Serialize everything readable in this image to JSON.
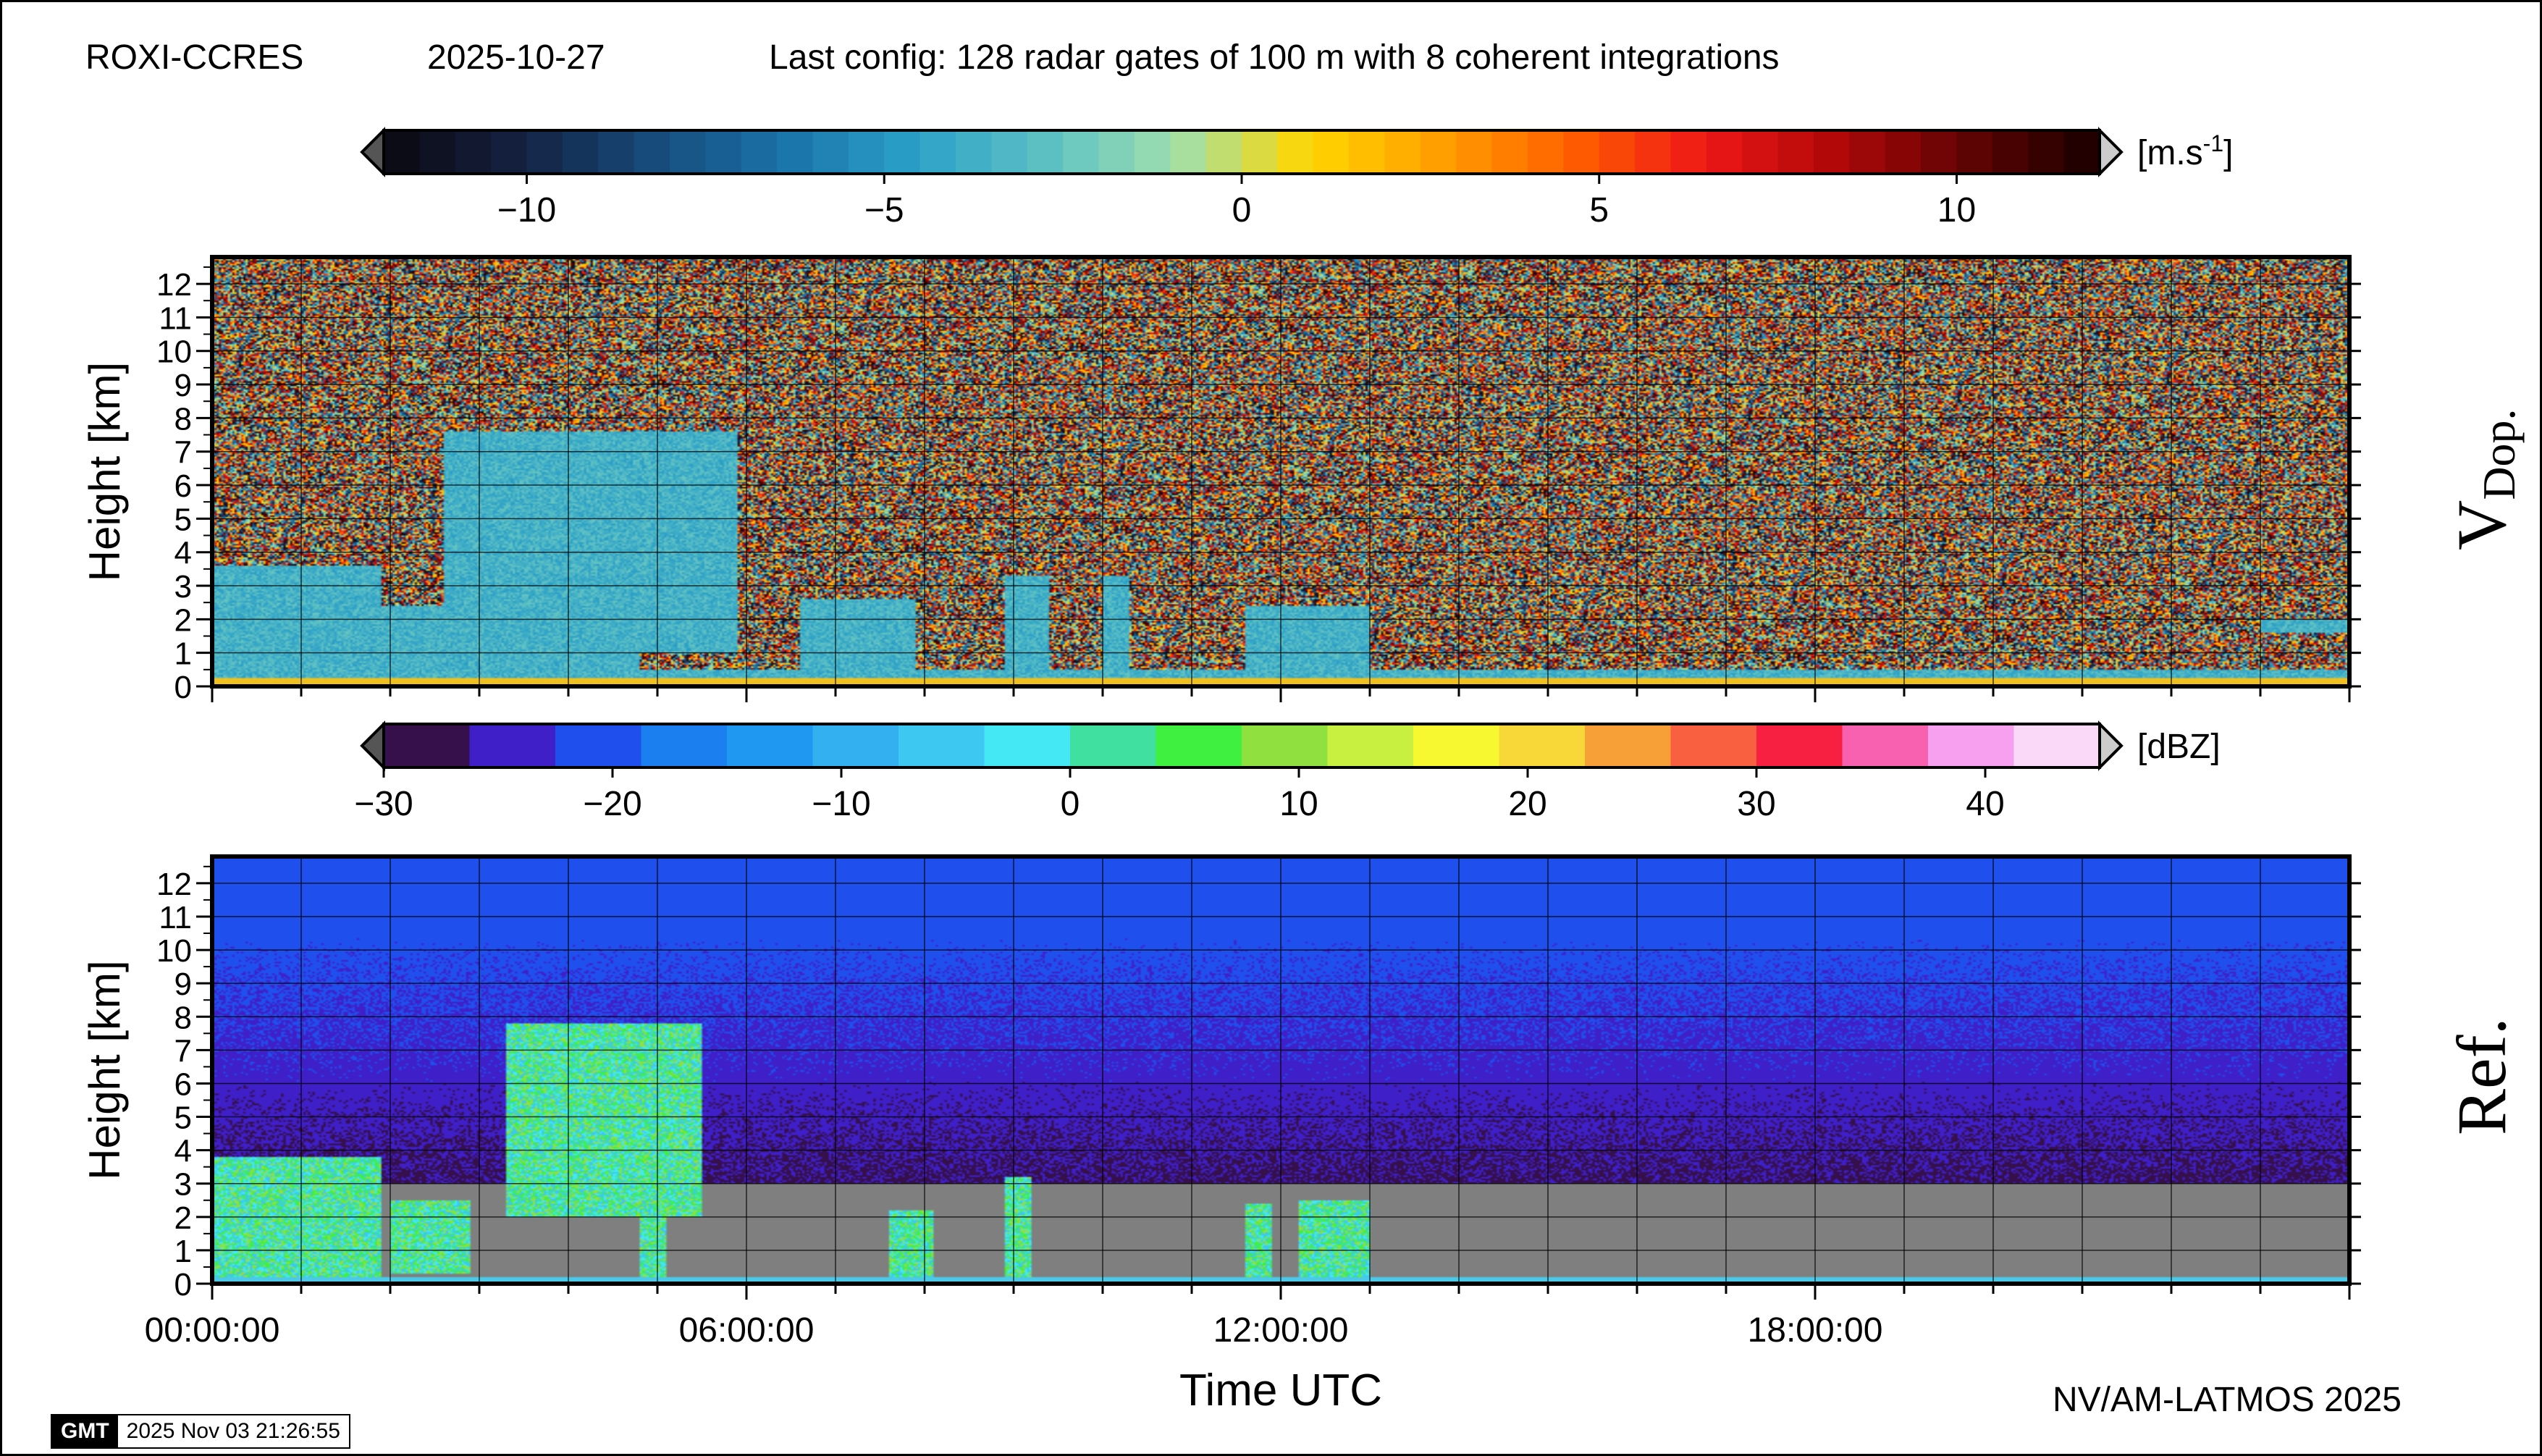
{
  "header": {
    "site": "ROXI-CCRES",
    "date": "2025-10-27",
    "config": "Last config: 128 radar gates of 100 m with 8 coherent integrations"
  },
  "footer": {
    "credit": "NV/AM-LATMOS 2025",
    "gmt_logo": "GMT",
    "timestamp": "2025 Nov 03 21:26:55"
  },
  "colors": {
    "missing": "#7f7f7f",
    "frame": "#000000"
  },
  "chart_data": [
    {
      "type": "heatmap",
      "panel_label": "V",
      "panel_label_sub": "Dop.",
      "ylabel": "Height [km]",
      "xlabel": "",
      "ylim": [
        0,
        12.8
      ],
      "yticks": [
        "0",
        "1",
        "2",
        "3",
        "4",
        "5",
        "6",
        "7",
        "8",
        "9",
        "10",
        "11",
        "12"
      ],
      "xlim": [
        0,
        24
      ],
      "xticks": [],
      "colorbar": {
        "unit_base": "[m.s",
        "unit_exp": "-1",
        "unit_close": "]",
        "range": [
          -12,
          12
        ],
        "ticks": [
          -10,
          -5,
          0,
          5,
          10
        ],
        "tick_labels": [
          "−10",
          "−5",
          "0",
          "5",
          "10"
        ],
        "stops": [
          "#0a0a10",
          "#152040",
          "#174a7a",
          "#1a72a8",
          "#2ba0c8",
          "#5cc0c4",
          "#9fe0b0",
          "#ffd700",
          "#ffa000",
          "#ff6000",
          "#f01818",
          "#b00808",
          "#600404",
          "#1a0000"
        ]
      },
      "features": [
        {
          "t0": 0.0,
          "t1": 1.9,
          "h0": 0.0,
          "h1": 3.6
        },
        {
          "t0": 1.9,
          "t1": 4.8,
          "h0": 0.0,
          "h1": 2.4
        },
        {
          "t0": 2.6,
          "t1": 5.9,
          "h0": 1.0,
          "h1": 7.6
        },
        {
          "t0": 6.6,
          "t1": 7.9,
          "h0": 0.5,
          "h1": 2.6
        },
        {
          "t0": 8.9,
          "t1": 9.4,
          "h0": 0.2,
          "h1": 3.3
        },
        {
          "t0": 10.0,
          "t1": 10.3,
          "h0": 0.2,
          "h1": 3.3
        },
        {
          "t0": 11.6,
          "t1": 13.0,
          "h0": 0.2,
          "h1": 2.4
        },
        {
          "t0": 23.0,
          "t1": 24.0,
          "h0": 1.6,
          "h1": 2.0
        }
      ]
    },
    {
      "type": "heatmap",
      "panel_label": "Ref.",
      "panel_label_sub": "",
      "ylabel": "Height [km]",
      "xlabel": "Time UTC",
      "ylim": [
        0,
        12.8
      ],
      "yticks": [
        "0",
        "1",
        "2",
        "3",
        "4",
        "5",
        "6",
        "7",
        "8",
        "9",
        "10",
        "11",
        "12"
      ],
      "xlim": [
        0,
        24
      ],
      "xticks": [
        {
          "value": 0,
          "label": "00:00:00"
        },
        {
          "value": 6,
          "label": "06:00:00"
        },
        {
          "value": 12,
          "label": "12:00:00"
        },
        {
          "value": 18,
          "label": "18:00:00"
        }
      ],
      "colorbar": {
        "unit_base": "[dBZ]",
        "unit_exp": "",
        "unit_close": "",
        "range": [
          -30,
          45
        ],
        "ticks": [
          -30,
          -20,
          -10,
          0,
          10,
          20,
          30,
          40
        ],
        "tick_labels": [
          "−30",
          "−20",
          "−10",
          "0",
          "10",
          "20",
          "30",
          "40"
        ],
        "segments": [
          "#35104a",
          "#3f1fc8",
          "#1f50ee",
          "#1c7ff0",
          "#1e98f0",
          "#32b0f0",
          "#3cc8f0",
          "#44e8f4",
          "#40e0a0",
          "#40f040",
          "#90e040",
          "#c8f040",
          "#f8f830",
          "#f8d838",
          "#f8a038",
          "#f86040",
          "#f82040",
          "#f860b0",
          "#f8a0f0",
          "#fad8f8"
        ]
      },
      "features": [
        {
          "t0": 0.0,
          "t1": 1.9,
          "h0": 0.0,
          "h1": 3.8
        },
        {
          "t0": 2.0,
          "t1": 2.9,
          "h0": 0.3,
          "h1": 2.5
        },
        {
          "t0": 3.3,
          "t1": 5.5,
          "h0": 2.0,
          "h1": 7.8
        },
        {
          "t0": 4.8,
          "t1": 5.1,
          "h0": 0.0,
          "h1": 2.8
        },
        {
          "t0": 7.6,
          "t1": 8.1,
          "h0": 0.0,
          "h1": 2.2
        },
        {
          "t0": 8.9,
          "t1": 9.2,
          "h0": 0.0,
          "h1": 3.2
        },
        {
          "t0": 11.6,
          "t1": 11.9,
          "h0": 0.0,
          "h1": 2.4
        },
        {
          "t0": 12.2,
          "t1": 13.0,
          "h0": 0.2,
          "h1": 2.5
        }
      ]
    }
  ]
}
